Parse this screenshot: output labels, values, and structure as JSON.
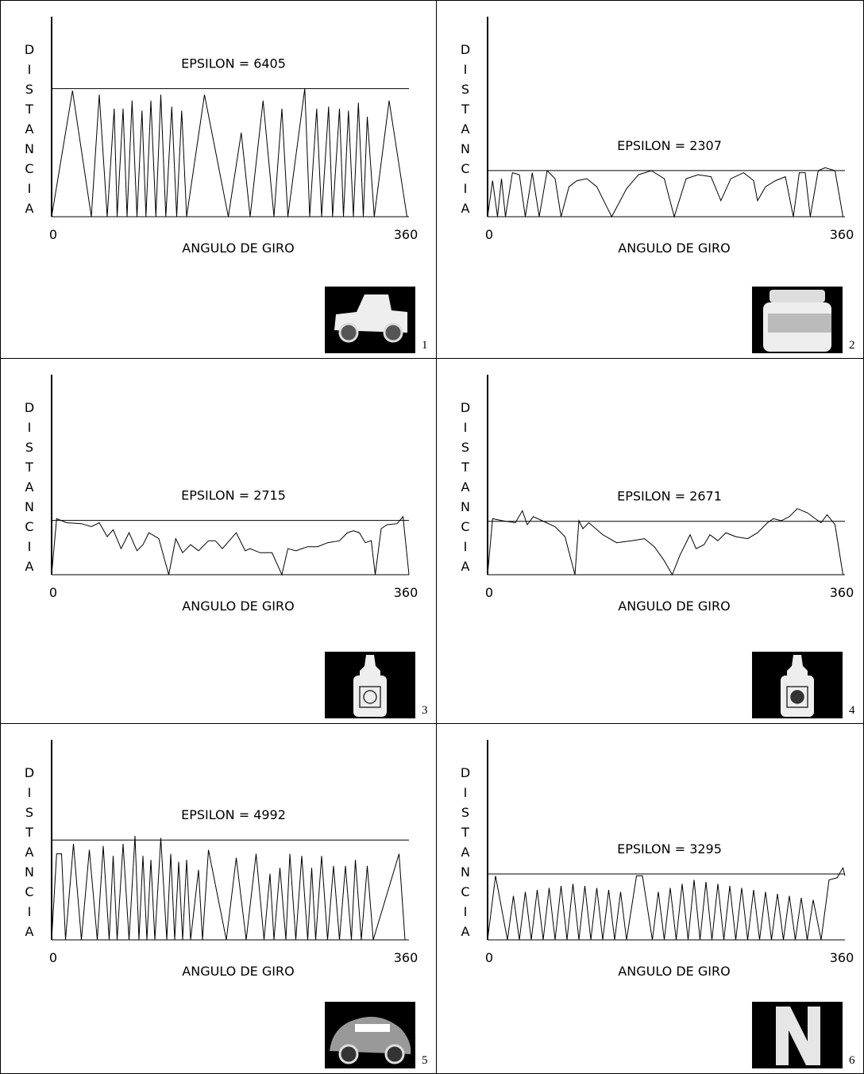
{
  "chart_data": [
    {
      "type": "line",
      "panel_label": "1",
      "y_label": "DISTANCIA",
      "x_label": "ANGULO DE GIRO",
      "threshold": {
        "value": 6405,
        "label": "EPSILON = 6405"
      },
      "color": "#000000",
      "xlim": [
        0,
        360
      ],
      "xticks": [
        0,
        360
      ],
      "ylim": [
        0,
        10000
      ],
      "x": [
        0,
        21,
        40,
        48,
        56,
        63,
        66,
        72,
        76,
        81,
        86,
        91,
        95,
        100,
        105,
        110,
        115,
        121,
        126,
        131,
        136,
        154,
        178,
        191,
        200,
        213,
        224,
        232,
        238,
        255,
        260,
        267,
        272,
        279,
        283,
        290,
        294,
        299,
        304,
        309,
        314,
        318,
        325,
        340,
        358
      ],
      "values": [
        0,
        6300,
        0,
        6100,
        0,
        5400,
        0,
        5400,
        0,
        5800,
        0,
        5300,
        0,
        5800,
        0,
        6100,
        0,
        5500,
        0,
        5300,
        0,
        6100,
        0,
        4200,
        0,
        5800,
        0,
        5400,
        0,
        6405,
        0,
        5400,
        0,
        5500,
        0,
        5400,
        0,
        5300,
        0,
        5700,
        0,
        5000,
        0,
        5800,
        0
      ]
    },
    {
      "type": "line",
      "panel_label": "2",
      "y_label": "DISTANCIA",
      "x_label": "ANGULO DE GIRO",
      "threshold": {
        "value": 2307,
        "label": "EPSILON = 2307"
      },
      "color": "#000000",
      "xlim": [
        0,
        360
      ],
      "xticks": [
        0,
        360
      ],
      "ylim": [
        0,
        10000
      ],
      "x": [
        0,
        5,
        10,
        14,
        18,
        25,
        32,
        38,
        45,
        52,
        60,
        68,
        74,
        82,
        90,
        100,
        110,
        125,
        140,
        152,
        165,
        178,
        188,
        200,
        212,
        225,
        235,
        245,
        258,
        268,
        272,
        280,
        290,
        300,
        308,
        314,
        320,
        325,
        333,
        340,
        350,
        358
      ],
      "values": [
        0,
        1800,
        0,
        1900,
        0,
        2200,
        2100,
        0,
        2200,
        0,
        2300,
        1900,
        0,
        1500,
        1800,
        1900,
        1500,
        0,
        1400,
        2100,
        2300,
        1900,
        0,
        1900,
        2100,
        2000,
        800,
        1900,
        2200,
        1800,
        800,
        1500,
        1800,
        2000,
        0,
        2200,
        2200,
        0,
        2300,
        2450,
        2300,
        0
      ]
    },
    {
      "type": "line",
      "panel_label": "3",
      "y_label": "DISTANCIA",
      "x_label": "ANGULO DE GIRO",
      "threshold": {
        "value": 2715,
        "label": "EPSILON = 2715"
      },
      "color": "#000000",
      "xlim": [
        0,
        360
      ],
      "xticks": [
        0,
        360
      ],
      "ylim": [
        0,
        10000
      ],
      "x": [
        0,
        5,
        15,
        30,
        40,
        48,
        56,
        62,
        70,
        78,
        86,
        92,
        98,
        108,
        118,
        125,
        132,
        140,
        148,
        158,
        165,
        172,
        186,
        195,
        200,
        210,
        222,
        232,
        238,
        246,
        258,
        268,
        278,
        290,
        298,
        304,
        310,
        316,
        322,
        326,
        332,
        338,
        348,
        354,
        360
      ],
      "values": [
        0,
        2800,
        2600,
        2550,
        2400,
        2600,
        1900,
        2250,
        1300,
        2100,
        1200,
        1500,
        2100,
        1800,
        0,
        1800,
        1100,
        1500,
        1200,
        1700,
        1700,
        1300,
        2100,
        1200,
        1300,
        1100,
        1100,
        0,
        1300,
        1200,
        1400,
        1400,
        1600,
        1700,
        2100,
        2200,
        2100,
        1600,
        1700,
        0,
        2300,
        2500,
        2550,
        2900,
        0
      ]
    },
    {
      "type": "line",
      "panel_label": "4",
      "y_label": "DISTANCIA",
      "x_label": "ANGULO DE GIRO",
      "threshold": {
        "value": 2671,
        "label": "EPSILON = 2671"
      },
      "color": "#000000",
      "xlim": [
        0,
        360
      ],
      "xticks": [
        0,
        360
      ],
      "ylim": [
        0,
        10000
      ],
      "x": [
        0,
        5,
        15,
        28,
        35,
        40,
        46,
        55,
        68,
        78,
        88,
        92,
        96,
        102,
        116,
        130,
        145,
        158,
        168,
        178,
        186,
        194,
        204,
        210,
        218,
        224,
        232,
        240,
        250,
        262,
        272,
        282,
        288,
        296,
        304,
        312,
        322,
        330,
        336,
        342,
        350,
        358
      ],
      "values": [
        0,
        2800,
        2700,
        2600,
        3200,
        2500,
        2900,
        2700,
        2400,
        1900,
        0,
        2700,
        2300,
        2600,
        2000,
        1600,
        1700,
        1800,
        1400,
        700,
        0,
        1000,
        2000,
        1300,
        1500,
        2000,
        1700,
        2100,
        1900,
        1800,
        2100,
        2600,
        2800,
        2700,
        2900,
        3300,
        3100,
        2800,
        2600,
        3000,
        2500,
        0
      ]
    },
    {
      "type": "line",
      "panel_label": "5",
      "y_label": "DISTANCIA",
      "x_label": "ANGULO DE GIRO",
      "threshold": {
        "value": 4992,
        "label": "EPSILON = 4992"
      },
      "color": "#000000",
      "xlim": [
        0,
        360
      ],
      "xticks": [
        0,
        360
      ],
      "ylim": [
        0,
        10000
      ],
      "x": [
        0,
        5,
        10,
        14,
        22,
        30,
        38,
        46,
        52,
        58,
        62,
        66,
        72,
        78,
        84,
        88,
        92,
        96,
        100,
        104,
        110,
        116,
        120,
        124,
        128,
        132,
        136,
        140,
        148,
        152,
        158,
        176,
        186,
        196,
        206,
        214,
        220,
        224,
        230,
        236,
        240,
        246,
        252,
        258,
        262,
        266,
        272,
        278,
        284,
        290,
        296,
        302,
        306,
        312,
        318,
        324,
        350,
        356
      ],
      "values": [
        0,
        4300,
        4300,
        0,
        4800,
        0,
        4500,
        0,
        4700,
        0,
        4200,
        0,
        4800,
        0,
        5200,
        0,
        4200,
        0,
        4000,
        0,
        5100,
        0,
        4300,
        0,
        3900,
        0,
        4000,
        0,
        3500,
        0,
        4500,
        0,
        4100,
        0,
        4300,
        0,
        3300,
        0,
        3600,
        0,
        4300,
        0,
        4200,
        0,
        3600,
        0,
        4200,
        0,
        3700,
        0,
        3700,
        0,
        4000,
        0,
        3700,
        0,
        4300,
        0
      ]
    },
    {
      "type": "line",
      "panel_label": "6",
      "y_label": "DISTANCIA",
      "x_label": "ANGULO DE GIRO",
      "threshold": {
        "value": 3295,
        "label": "EPSILON = 3295"
      },
      "color": "#000000",
      "xlim": [
        0,
        360
      ],
      "xticks": [
        0,
        360
      ],
      "ylim": [
        0,
        10000
      ],
      "x": [
        0,
        8,
        20,
        26,
        32,
        38,
        44,
        50,
        56,
        62,
        68,
        74,
        80,
        86,
        92,
        98,
        104,
        110,
        116,
        122,
        128,
        134,
        140,
        150,
        156,
        166,
        172,
        178,
        184,
        190,
        196,
        202,
        208,
        214,
        220,
        226,
        232,
        238,
        244,
        250,
        256,
        262,
        268,
        274,
        280,
        286,
        292,
        298,
        304,
        310,
        316,
        322,
        328,
        336,
        344,
        352,
        358,
        360
      ],
      "values": [
        0,
        3200,
        0,
        2200,
        0,
        2400,
        0,
        2500,
        0,
        2600,
        0,
        2700,
        0,
        2800,
        0,
        2700,
        0,
        2600,
        0,
        2500,
        0,
        2400,
        0,
        3200,
        3200,
        0,
        2400,
        0,
        2600,
        0,
        2800,
        0,
        3000,
        0,
        2900,
        0,
        2800,
        0,
        2700,
        0,
        2600,
        0,
        2500,
        0,
        2400,
        0,
        2300,
        0,
        2200,
        0,
        2100,
        0,
        2000,
        0,
        3000,
        3100,
        3600,
        3200
      ]
    }
  ]
}
